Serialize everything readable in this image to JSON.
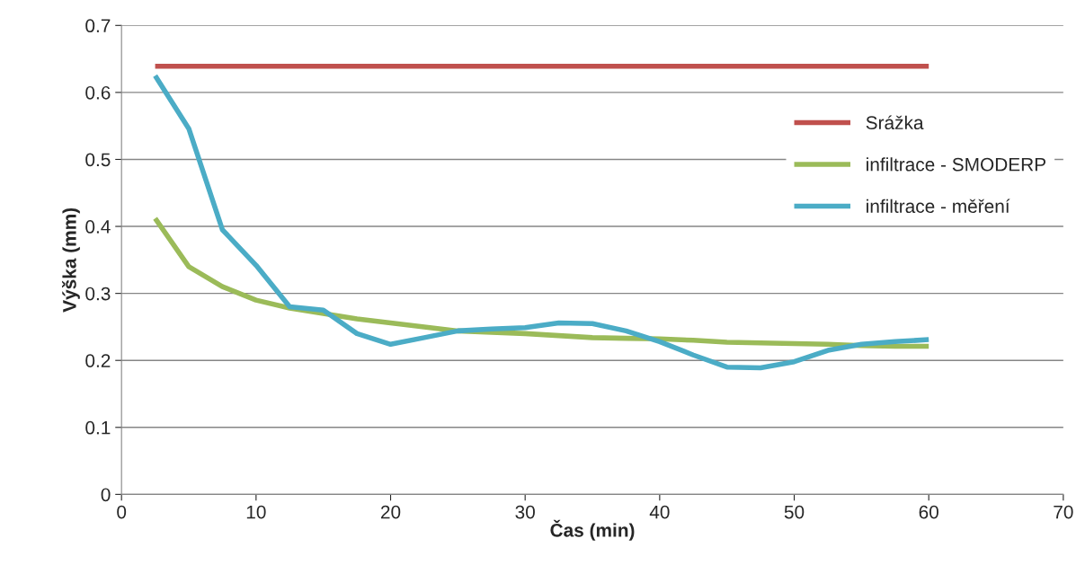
{
  "chart_data": {
    "type": "line",
    "xlabel": "Čas (min)",
    "ylabel": "Výška (mm)",
    "x": [
      2.5,
      5,
      7.5,
      10,
      12.5,
      15,
      17.5,
      20,
      22.5,
      25,
      27.5,
      30,
      32.5,
      35,
      37.5,
      40,
      42.5,
      45,
      47.5,
      50,
      52.5,
      55,
      57.5,
      60
    ],
    "series": [
      {
        "name": "Srážka",
        "color": "#c0504d",
        "values": [
          0.639,
          0.639,
          0.639,
          0.639,
          0.639,
          0.639,
          0.639,
          0.639,
          0.639,
          0.639,
          0.639,
          0.639,
          0.639,
          0.639,
          0.639,
          0.639,
          0.639,
          0.639,
          0.639,
          0.639,
          0.639,
          0.639,
          0.639,
          0.639
        ]
      },
      {
        "name": "infiltrace - SMODERP",
        "color": "#9bbb59",
        "values": [
          0.412,
          0.34,
          0.31,
          0.29,
          0.278,
          0.27,
          0.262,
          0.256,
          0.25,
          0.244,
          0.242,
          0.24,
          0.237,
          0.234,
          0.233,
          0.232,
          0.23,
          0.227,
          0.226,
          0.225,
          0.224,
          0.222,
          0.221,
          0.221
        ]
      },
      {
        "name": "infiltrace - měření",
        "color": "#4bacc6",
        "values": [
          0.625,
          0.546,
          0.395,
          0.342,
          0.28,
          0.275,
          0.24,
          0.224,
          0.234,
          0.244,
          0.247,
          0.249,
          0.256,
          0.255,
          0.244,
          0.228,
          0.208,
          0.19,
          0.189,
          0.198,
          0.215,
          0.224,
          0.228,
          0.231
        ]
      }
    ],
    "xlim": [
      0,
      70
    ],
    "xticks": [
      0,
      10,
      20,
      30,
      40,
      50,
      60,
      70
    ],
    "ylim": [
      0,
      0.7
    ],
    "yticks": [
      0,
      0.1,
      0.2,
      0.3,
      0.4,
      0.5,
      0.6,
      0.7
    ],
    "grid": "y",
    "legend": "right",
    "marker": "none",
    "line_style": "solid"
  }
}
